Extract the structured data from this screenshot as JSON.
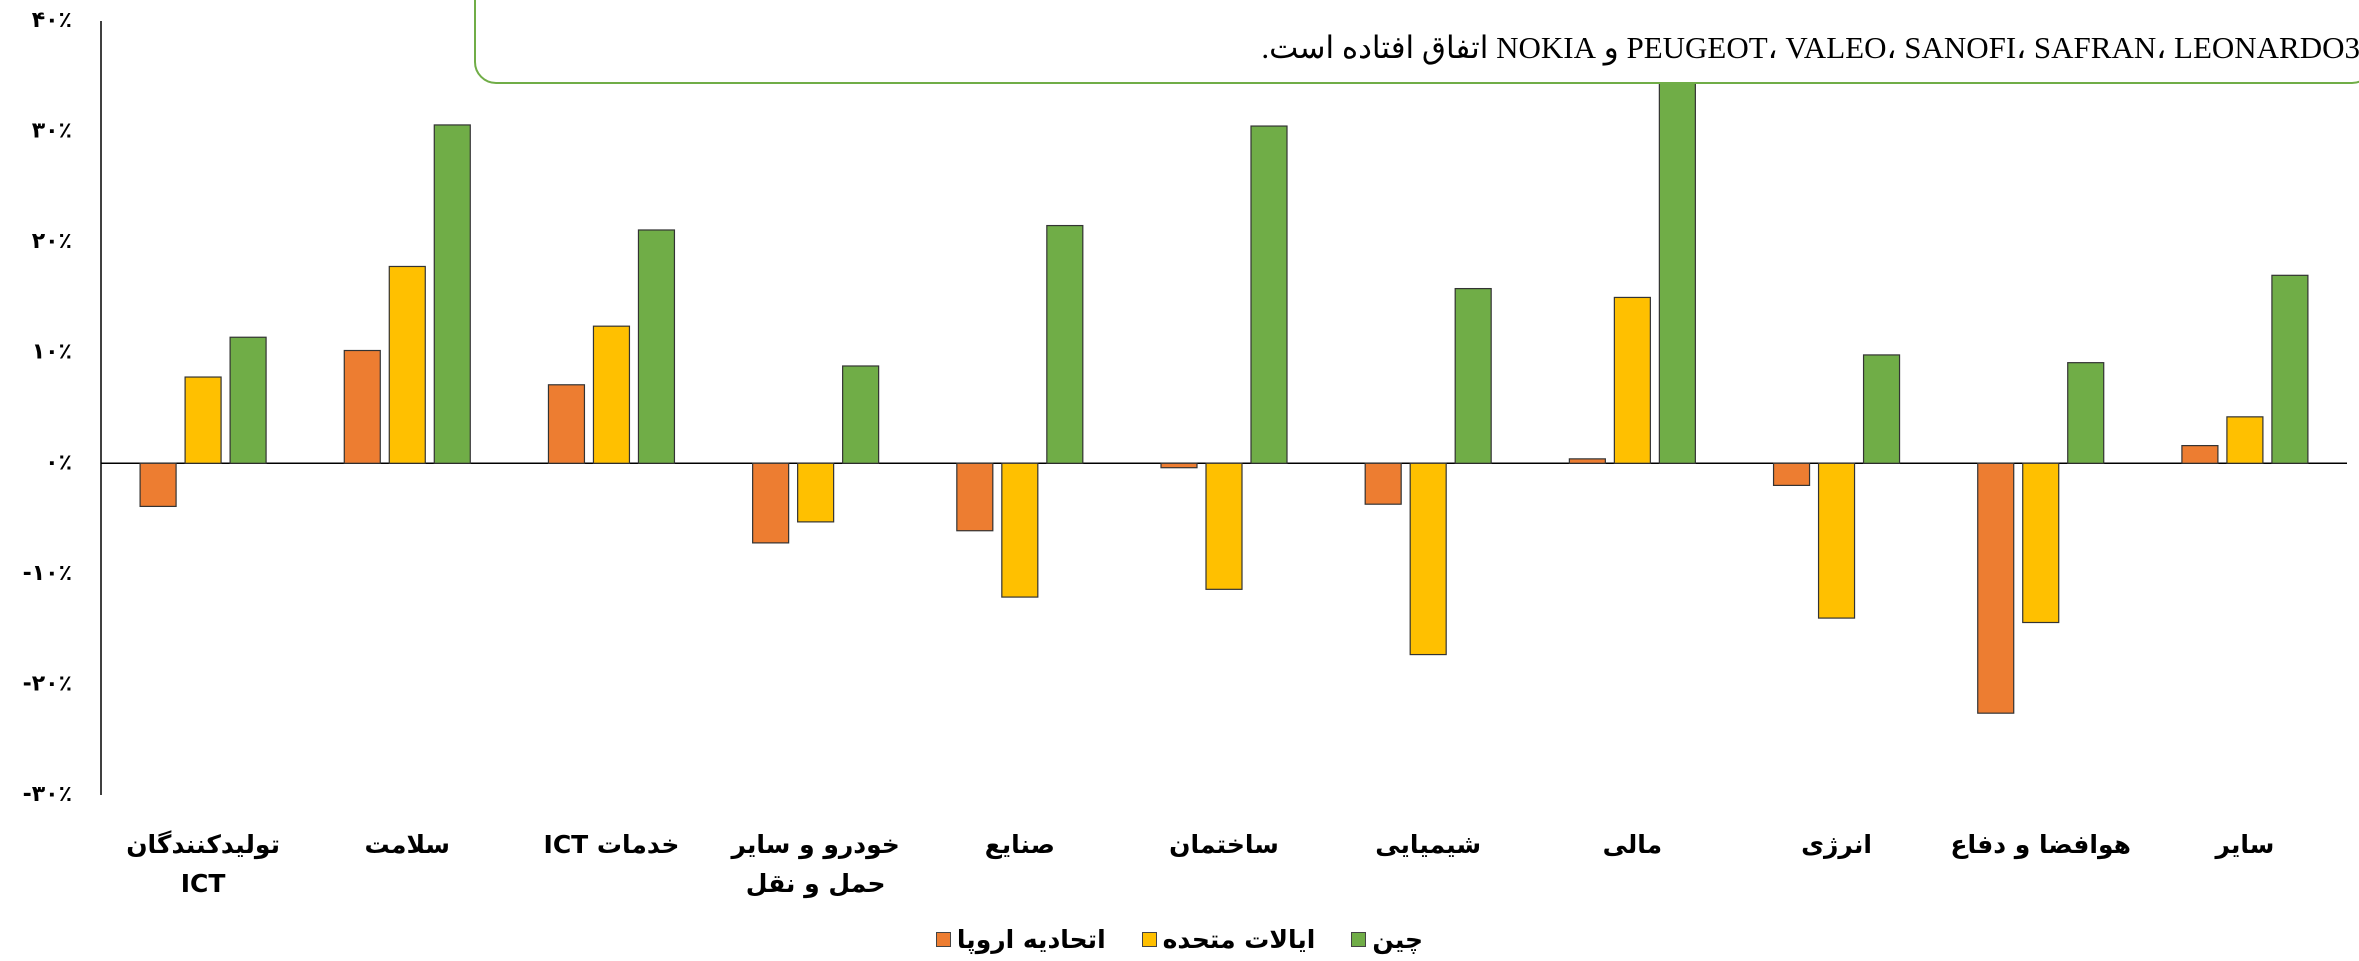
{
  "chart_data": {
    "type": "bar",
    "annotation": "PEUGEOT، VALEO، SANOFI، SAFRAN، LEONARDO3 و NOKIA اتفاق افتاده است.",
    "categories": [
      "تولیدکنندگان ICT",
      "سلامت",
      "خدمات ICT",
      "خودرو و سایر حمل و نقل",
      "صنایع",
      "ساختمان",
      "شیمیایی",
      "مالی",
      "انرژی",
      "هوافضا و دفاع",
      "سایر"
    ],
    "series": [
      {
        "name": "اتحادیه اروپا",
        "color": "#ed7d31",
        "values": [
          -3.9,
          10.2,
          7.1,
          -7.2,
          -6.1,
          -0.4,
          -3.7,
          0.4,
          -2.0,
          -22.6,
          1.6
        ]
      },
      {
        "name": "ایالات متحده",
        "color": "#ffc000",
        "values": [
          7.8,
          17.8,
          12.4,
          -5.3,
          -12.1,
          -11.4,
          -17.3,
          15.0,
          -14.0,
          -14.4,
          4.2
        ]
      },
      {
        "name": "چین",
        "color": "#70ad47",
        "values": [
          11.4,
          30.6,
          21.1,
          8.8,
          21.5,
          30.5,
          15.8,
          38.0,
          9.8,
          9.1,
          17.0
        ]
      }
    ],
    "ylim": [
      -30,
      40
    ],
    "yticks": [
      {
        "value": -30,
        "label": "-۳۰٪"
      },
      {
        "value": -20,
        "label": "-۲۰٪"
      },
      {
        "value": -10,
        "label": "-۱۰٪"
      },
      {
        "value": 0,
        "label": "۰٪"
      },
      {
        "value": 10,
        "label": "۱۰٪"
      },
      {
        "value": 20,
        "label": "۲۰٪"
      },
      {
        "value": 30,
        "label": "۳۰٪"
      },
      {
        "value": 40,
        "label": "۴۰٪"
      }
    ],
    "grid": false
  }
}
